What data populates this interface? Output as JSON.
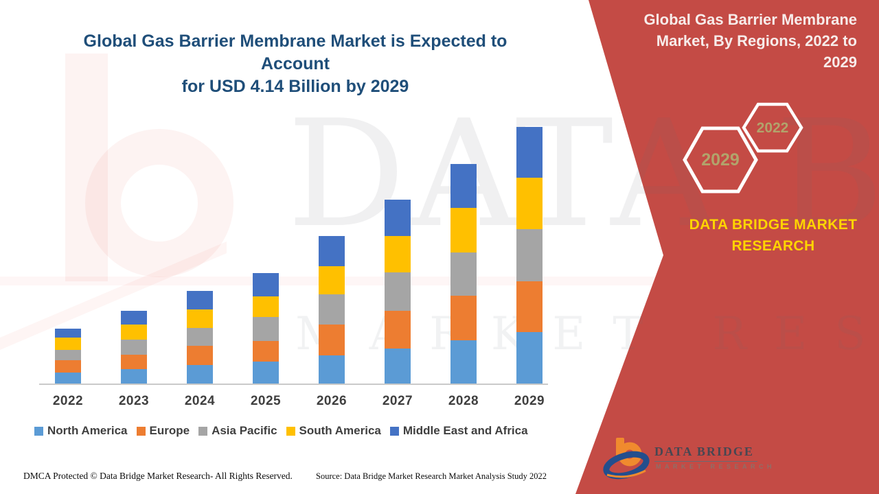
{
  "main_title": {
    "lines": [
      "Global Gas Barrier Membrane Market is Expected to Account",
      "for USD 4.14 Billion by 2029"
    ],
    "color": "#1F4E79"
  },
  "side_panel": {
    "background_color": "#C44B45",
    "title_lines": [
      "Global Gas Barrier Membrane",
      "Market, By Regions, 2022 to",
      "2029"
    ],
    "hexagon_back_label": "2029",
    "hexagon_front_label": "2022",
    "hexagon_text_color": "#B2A36B",
    "brand_lines": [
      "DATA BRIDGE MARKET",
      "RESEARCH"
    ],
    "brand_color": "#FFD400"
  },
  "chart_data": {
    "type": "bar",
    "stacked": true,
    "title": "Global Gas Barrier Membrane Market, By Regions, 2022 to 2029",
    "unit": "USD Billion",
    "categories": [
      "2022",
      "2023",
      "2024",
      "2025",
      "2026",
      "2027",
      "2028",
      "2029"
    ],
    "series": [
      {
        "name": "North America",
        "color": "#5B9BD5",
        "values": [
          0.18,
          0.23,
          0.3,
          0.35,
          0.46,
          0.57,
          0.7,
          0.83
        ]
      },
      {
        "name": "Europe",
        "color": "#ED7D31",
        "values": [
          0.2,
          0.24,
          0.31,
          0.34,
          0.49,
          0.6,
          0.72,
          0.82
        ]
      },
      {
        "name": "Asia Pacific",
        "color": "#A5A5A5",
        "values": [
          0.16,
          0.24,
          0.29,
          0.38,
          0.49,
          0.62,
          0.7,
          0.84
        ]
      },
      {
        "name": "South America",
        "color": "#FFC000",
        "values": [
          0.2,
          0.24,
          0.3,
          0.34,
          0.46,
          0.59,
          0.72,
          0.83
        ]
      },
      {
        "name": "Middle East and Africa",
        "color": "#4472C4",
        "values": [
          0.15,
          0.22,
          0.3,
          0.37,
          0.48,
          0.59,
          0.71,
          0.82
        ]
      }
    ],
    "totals": [
      0.89,
      1.17,
      1.5,
      1.78,
      2.38,
      2.97,
      3.55,
      4.14
    ],
    "ylim": [
      0,
      4.2
    ],
    "grid": false,
    "axis_labels_hidden": true,
    "legend_position": "bottom"
  },
  "footer": {
    "dmca": "DMCA Protected © Data Bridge Market Research- All Rights Reserved.",
    "source": "Source: Data Bridge Market Research Market Analysis Study 2022"
  },
  "footer_logo": {
    "name": "DATA BRIDGE",
    "subtitle": "MARKET RESEARCH"
  },
  "watermark": {
    "line1": "DATA BRIDGE",
    "line2": "MARKET RESEARCH"
  }
}
